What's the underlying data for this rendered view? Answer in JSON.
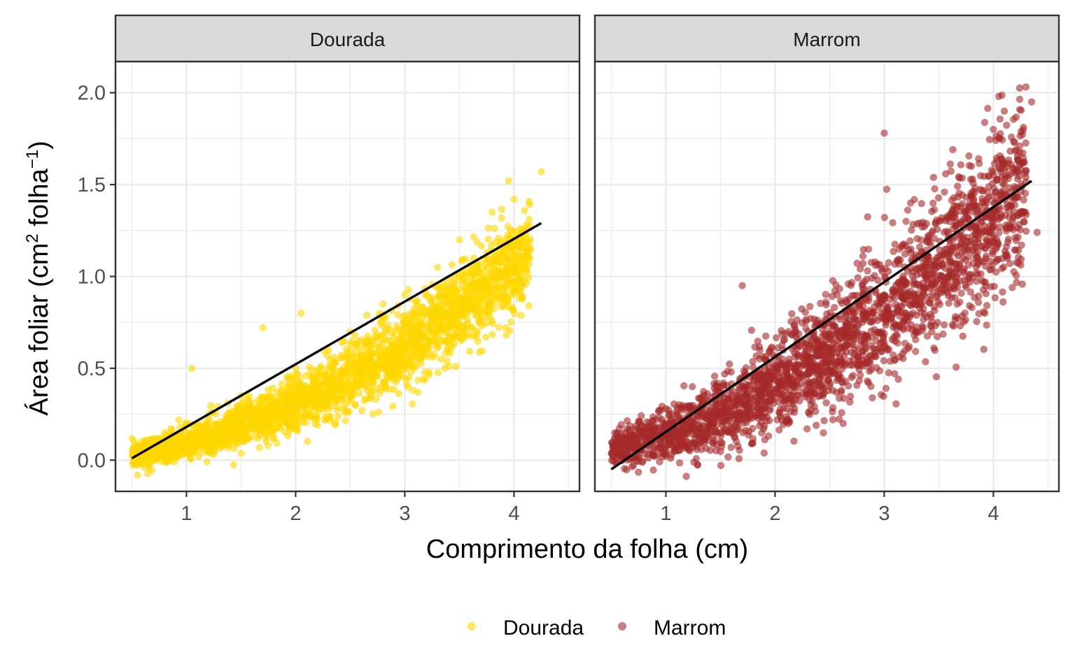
{
  "chart_data": {
    "type": "scatter",
    "facet_by": "cultivar",
    "xlabel": "Comprimento da folha (cm)",
    "ylabel": {
      "prefix": "Área foliar (cm",
      "sup1": "2",
      "middle": " folha",
      "sup2": "−1",
      "suffix": ")"
    },
    "xlim": [
      0.35,
      4.6
    ],
    "ylim": [
      -0.17,
      2.17
    ],
    "x_ticks": [
      1,
      2,
      3,
      4
    ],
    "x_tick_labels": [
      "1",
      "2",
      "3",
      "4"
    ],
    "y_ticks": [
      0.0,
      0.5,
      1.0,
      1.5,
      2.0
    ],
    "y_tick_labels": [
      "0.0",
      "0.5",
      "1.0",
      "1.5",
      "2.0"
    ],
    "grid": true,
    "legend_position": "bottom",
    "panels": [
      {
        "name": "Dourada",
        "color": "#FFD700",
        "point_alpha": 0.6,
        "x_range": [
          0.5,
          4.25
        ],
        "trend": {
          "x": [
            0.5,
            4.25
          ],
          "y": [
            0.01,
            1.29
          ]
        },
        "sample_points": [
          [
            0.55,
            0.08
          ],
          [
            0.7,
            0.12
          ],
          [
            0.8,
            0.15
          ],
          [
            1.0,
            0.2
          ],
          [
            1.05,
            0.5
          ],
          [
            1.2,
            0.25
          ],
          [
            1.5,
            0.35
          ],
          [
            1.7,
            0.72
          ],
          [
            2.0,
            0.5
          ],
          [
            2.05,
            0.8
          ],
          [
            2.3,
            0.6
          ],
          [
            2.5,
            0.7
          ],
          [
            2.8,
            0.85
          ],
          [
            3.0,
            0.9
          ],
          [
            3.3,
            1.05
          ],
          [
            3.5,
            1.2
          ],
          [
            3.8,
            1.35
          ],
          [
            3.95,
            1.52
          ],
          [
            4.0,
            1.42
          ],
          [
            4.25,
            1.57
          ],
          [
            3.45,
            0.96
          ],
          [
            2.25,
            0.42
          ]
        ]
      },
      {
        "name": "Marrom",
        "color": "#A52A2A",
        "point_alpha": 0.6,
        "x_range": [
          0.5,
          4.4
        ],
        "trend": {
          "x": [
            0.5,
            4.35
          ],
          "y": [
            -0.05,
            1.52
          ]
        },
        "sample_points": [
          [
            0.55,
            0.08
          ],
          [
            0.8,
            0.15
          ],
          [
            1.0,
            0.2
          ],
          [
            1.5,
            0.35
          ],
          [
            1.7,
            0.95
          ],
          [
            2.0,
            0.5
          ],
          [
            2.5,
            0.7
          ],
          [
            2.53,
            0.22
          ],
          [
            2.8,
            0.95
          ],
          [
            3.0,
            1.78
          ],
          [
            3.0,
            0.9
          ],
          [
            3.2,
            1.3
          ],
          [
            3.5,
            1.3
          ],
          [
            3.8,
            1.6
          ],
          [
            4.0,
            1.8
          ],
          [
            4.05,
            1.98
          ],
          [
            4.1,
            1.9
          ],
          [
            4.35,
            1.95
          ],
          [
            4.4,
            1.24
          ],
          [
            2.7,
            0.45
          ],
          [
            2.3,
            0.55
          ]
        ]
      }
    ],
    "legend": [
      "Dourada",
      "Marrom"
    ]
  }
}
